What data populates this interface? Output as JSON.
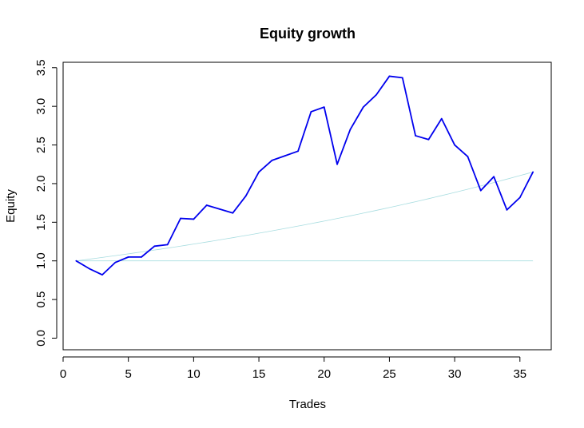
{
  "chart_data": {
    "type": "line",
    "title": "Equity growth",
    "xlabel": "Trades",
    "ylabel": "Equity",
    "xlim": [
      0,
      37.4
    ],
    "ylim": [
      -0.15,
      3.57
    ],
    "x_ticks": [
      0,
      5,
      10,
      15,
      20,
      25,
      30,
      35
    ],
    "y_ticks": [
      0.0,
      0.5,
      1.0,
      1.5,
      2.0,
      2.5,
      3.0,
      3.5
    ],
    "y_tick_labels": [
      "0.0",
      "0.5",
      "1.0",
      "1.5",
      "2.0",
      "2.5",
      "3.0",
      "3.5"
    ],
    "grid": false,
    "legend": "none",
    "colors": {
      "equity": "#0000ee",
      "reference": "#a8dde0"
    },
    "series": [
      {
        "role": "equity",
        "x": [
          1,
          2,
          3,
          4,
          5,
          6,
          7,
          8,
          9,
          10,
          11,
          12,
          13,
          14,
          15,
          16,
          17,
          18,
          19,
          20,
          21,
          22,
          23,
          24,
          25,
          26,
          27,
          28,
          29,
          30,
          31,
          32,
          33,
          34,
          35,
          36
        ],
        "y": [
          1.0,
          0.9,
          0.82,
          0.98,
          1.05,
          1.05,
          1.19,
          1.21,
          1.55,
          1.54,
          1.72,
          1.67,
          1.62,
          1.84,
          2.15,
          2.3,
          2.36,
          2.42,
          2.93,
          2.99,
          2.25,
          2.7,
          2.99,
          3.15,
          3.39,
          3.37,
          2.62,
          2.57,
          2.84,
          2.5,
          2.35,
          1.91,
          2.09,
          1.66,
          1.82,
          2.15
        ]
      },
      {
        "role": "baseline",
        "x": [
          1,
          36
        ],
        "y": [
          1.0,
          1.0
        ]
      },
      {
        "role": "exponential-trend",
        "x_start": 1,
        "x_end": 36,
        "y_start": 1.0,
        "y_end": 2.15
      }
    ]
  }
}
